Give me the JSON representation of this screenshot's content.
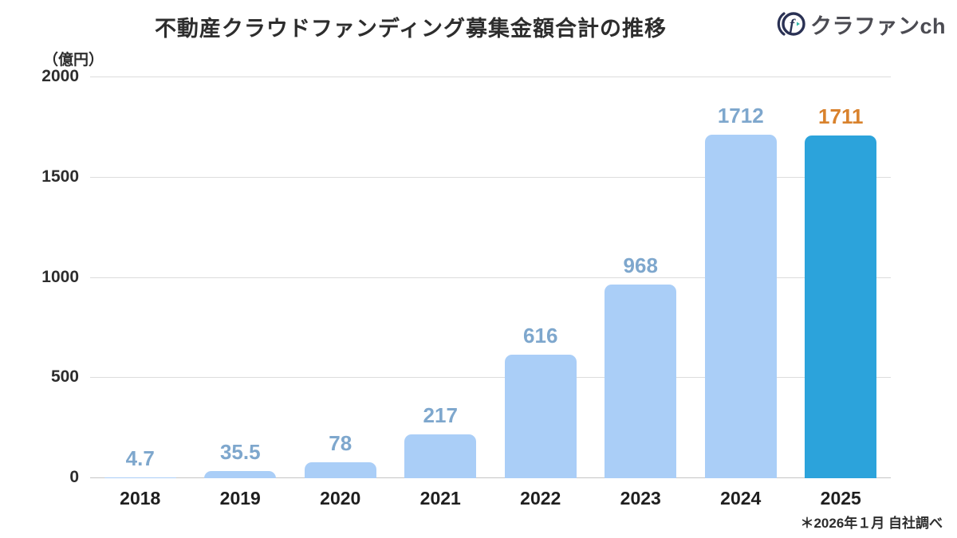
{
  "header": {
    "title": "不動産クラウドファンディング募集金額合計の推移",
    "logo_text": "クラファンch"
  },
  "chart_data": {
    "type": "bar",
    "title": "不動産クラウドファンディング募集金額合計の推移",
    "unit_label": "（億円）",
    "categories": [
      "2018",
      "2019",
      "2020",
      "2021",
      "2022",
      "2023",
      "2024",
      "2025"
    ],
    "values": [
      4.7,
      35.5,
      78,
      217,
      616,
      968,
      1712,
      1711
    ],
    "value_labels": [
      "4.7",
      "35.5",
      "78",
      "217",
      "616",
      "968",
      "1712",
      "1711"
    ],
    "ylim": [
      0,
      2000
    ],
    "yticks": [
      0,
      500,
      1000,
      1500,
      2000
    ],
    "grid": true,
    "legend": "none",
    "bar_color": "#aacef7",
    "highlight_bar_color": "#2ca3db",
    "highlight_index": 7,
    "value_label_color": "#7ea7cd",
    "highlight_value_label_color": "#d9822d"
  },
  "footnote": {
    "text": "＊2026年１月 自社調べ"
  }
}
